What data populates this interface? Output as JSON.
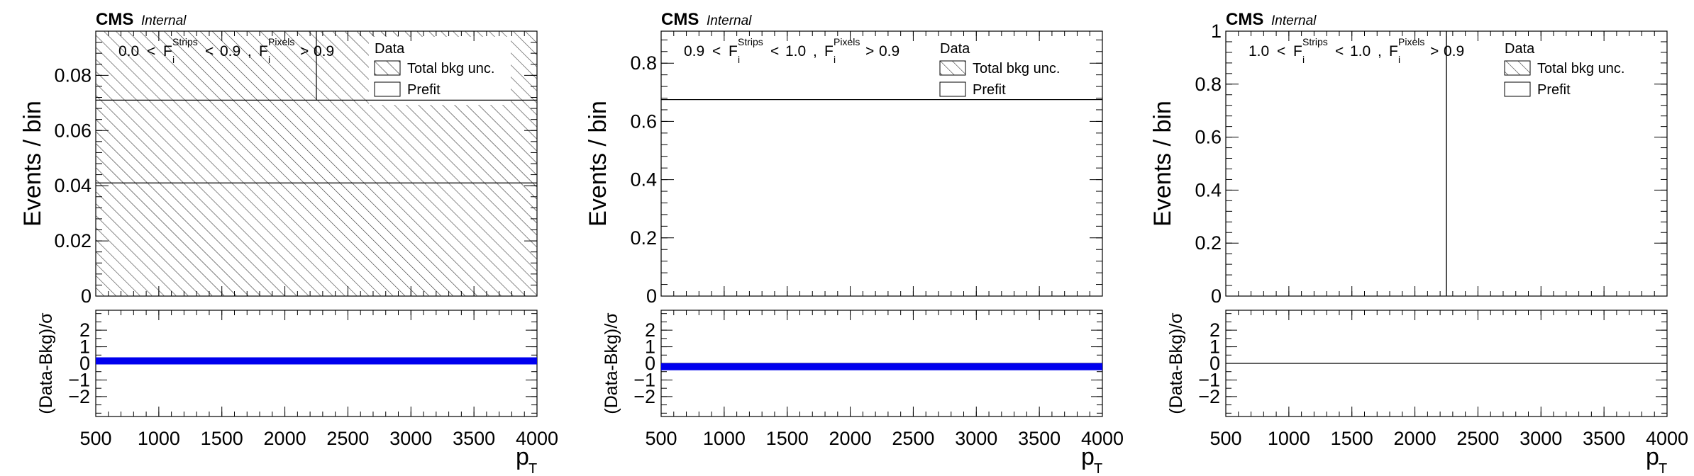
{
  "chart_data": [
    {
      "type": "bar",
      "label": {
        "brand": "CMS",
        "status": "Internal"
      },
      "region": {
        "lo": "0.0",
        "mid": "0.9",
        "hi": "0.9"
      },
      "ylabel": "Events / bin",
      "ratio_ylabel": "(Data-Bkg)/σ",
      "xlabel": "p",
      "xlabel_sub": "T",
      "xlim": [
        500,
        4000
      ],
      "ylim": [
        0,
        0.096
      ],
      "yticks": [
        {
          "v": 0,
          "t": "0"
        },
        {
          "v": 0.02,
          "t": "0.02"
        },
        {
          "v": 0.04,
          "t": "0.04"
        },
        {
          "v": 0.06,
          "t": "0.06"
        },
        {
          "v": 0.08,
          "t": "0.08"
        }
      ],
      "ratio_ylim": [
        -3.2,
        3.2
      ],
      "ratio_yticks": [
        {
          "v": -2,
          "t": "−2"
        },
        {
          "v": -1,
          "t": "−1"
        },
        {
          "v": 0,
          "t": "0"
        },
        {
          "v": 1,
          "t": "1"
        },
        {
          "v": 2,
          "t": "2"
        }
      ],
      "xticks": [
        500,
        1000,
        1500,
        2000,
        2500,
        3000,
        3500,
        4000
      ],
      "x_edges": [
        500,
        2250,
        4000
      ],
      "prefit": [
        0.071,
        0.071
      ],
      "total_bkg": [
        0.041,
        0.041
      ],
      "unc_band": [
        0.096,
        0.096
      ],
      "ratio_value": 0.15,
      "legend": [
        "Data",
        "Total bkg unc.",
        "Prefit"
      ]
    },
    {
      "type": "bar",
      "label": {
        "brand": "CMS",
        "status": "Internal"
      },
      "region": {
        "lo": "0.9",
        "mid": "1.0",
        "hi": "0.9"
      },
      "ylabel": "Events / bin",
      "ratio_ylabel": "(Data-Bkg)/σ",
      "xlabel": "p",
      "xlabel_sub": "T",
      "xlim": [
        500,
        4000
      ],
      "ylim": [
        0,
        0.91
      ],
      "yticks": [
        {
          "v": 0,
          "t": "0"
        },
        {
          "v": 0.2,
          "t": "0.2"
        },
        {
          "v": 0.4,
          "t": "0.4"
        },
        {
          "v": 0.6,
          "t": "0.6"
        },
        {
          "v": 0.8,
          "t": "0.8"
        }
      ],
      "ratio_ylim": [
        -3.2,
        3.2
      ],
      "ratio_yticks": [
        {
          "v": -2,
          "t": "−2"
        },
        {
          "v": -1,
          "t": "−1"
        },
        {
          "v": 0,
          "t": "0"
        },
        {
          "v": 1,
          "t": "1"
        },
        {
          "v": 2,
          "t": "2"
        }
      ],
      "xticks": [
        500,
        1000,
        1500,
        2000,
        2500,
        3000,
        3500,
        4000
      ],
      "x_edges": [
        500,
        2250,
        4000
      ],
      "prefit": [
        0.675,
        0.675
      ],
      "total_bkg": [
        0.675,
        0.675
      ],
      "unc_band": [
        0,
        0
      ],
      "ratio_value": -0.2,
      "legend": [
        "Data",
        "Total bkg unc.",
        "Prefit"
      ]
    },
    {
      "type": "bar",
      "label": {
        "brand": "CMS",
        "status": "Internal"
      },
      "region": {
        "lo": "1.0",
        "mid": "1.0",
        "hi": "0.9"
      },
      "ylabel": "Events / bin",
      "ratio_ylabel": "(Data-Bkg)/σ",
      "xlabel": "p",
      "xlabel_sub": "T",
      "xlim": [
        500,
        4000
      ],
      "ylim": [
        0,
        1
      ],
      "yticks": [
        {
          "v": 0,
          "t": "0"
        },
        {
          "v": 0.2,
          "t": "0.2"
        },
        {
          "v": 0.4,
          "t": "0.4"
        },
        {
          "v": 0.6,
          "t": "0.6"
        },
        {
          "v": 0.8,
          "t": "0.8"
        },
        {
          "v": 1,
          "t": "1"
        }
      ],
      "ratio_ylim": [
        -3.2,
        3.2
      ],
      "ratio_yticks": [
        {
          "v": -2,
          "t": "−2"
        },
        {
          "v": -1,
          "t": "−1"
        },
        {
          "v": 0,
          "t": "0"
        },
        {
          "v": 1,
          "t": "1"
        },
        {
          "v": 2,
          "t": "2"
        }
      ],
      "xticks": [
        500,
        1000,
        1500,
        2000,
        2500,
        3000,
        3500,
        4000
      ],
      "x_edges": [
        500,
        2250,
        4000
      ],
      "prefit": [
        0,
        0
      ],
      "total_bkg": [
        0,
        0
      ],
      "unc_band": [
        0,
        0
      ],
      "ratio_value": 0,
      "legend": [
        "Data",
        "Total bkg unc.",
        "Prefit"
      ]
    }
  ]
}
